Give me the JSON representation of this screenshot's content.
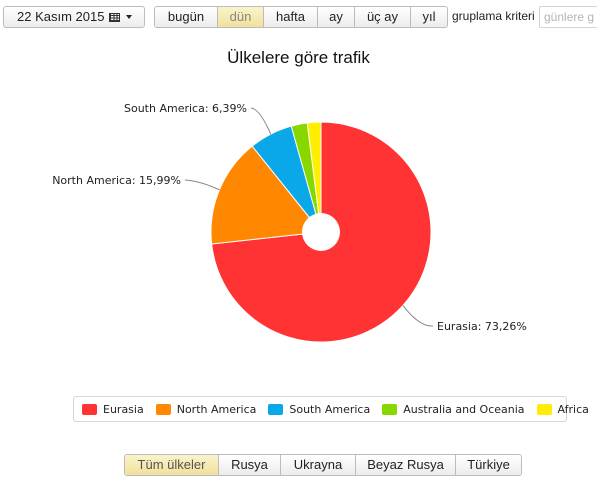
{
  "toolbar": {
    "date_label": "22 Kasım 2015",
    "calendar_icon": "calendar-icon",
    "caret_icon": "caret-down-icon",
    "periods": [
      {
        "label": "bugün",
        "active": false
      },
      {
        "label": "dün",
        "active": true
      },
      {
        "label": "hafta",
        "active": false
      },
      {
        "label": "ay",
        "active": false
      },
      {
        "label": "üç ay",
        "active": false
      },
      {
        "label": "yıl",
        "active": false
      }
    ],
    "grouping_label": "gruplama kriteri",
    "grouping_value": "günlere g"
  },
  "chart_data": {
    "type": "pie",
    "title": "Ülkelere göre trafik",
    "series": [
      {
        "name": "Eurasia",
        "value": 73.26,
        "label": "Eurasia: 73,26%",
        "color": "#ff3333"
      },
      {
        "name": "North America",
        "value": 15.99,
        "label": "North America: 15,99%",
        "color": "#ff8800"
      },
      {
        "name": "South America",
        "value": 6.39,
        "label": "South America: 6,39%",
        "color": "#0aa8e8"
      },
      {
        "name": "Australia and Oceania",
        "value": 2.36,
        "label": "",
        "color": "#88d800"
      },
      {
        "name": "Africa",
        "value": 2.0,
        "label": "",
        "color": "#ffee00"
      }
    ],
    "legend_position": "bottom"
  },
  "countries": [
    {
      "label": "Tüm ülkeler",
      "active": true
    },
    {
      "label": "Rusya",
      "active": false
    },
    {
      "label": "Ukrayna",
      "active": false
    },
    {
      "label": "Beyaz Rusya",
      "active": false
    },
    {
      "label": "Türkiye",
      "active": false
    }
  ]
}
